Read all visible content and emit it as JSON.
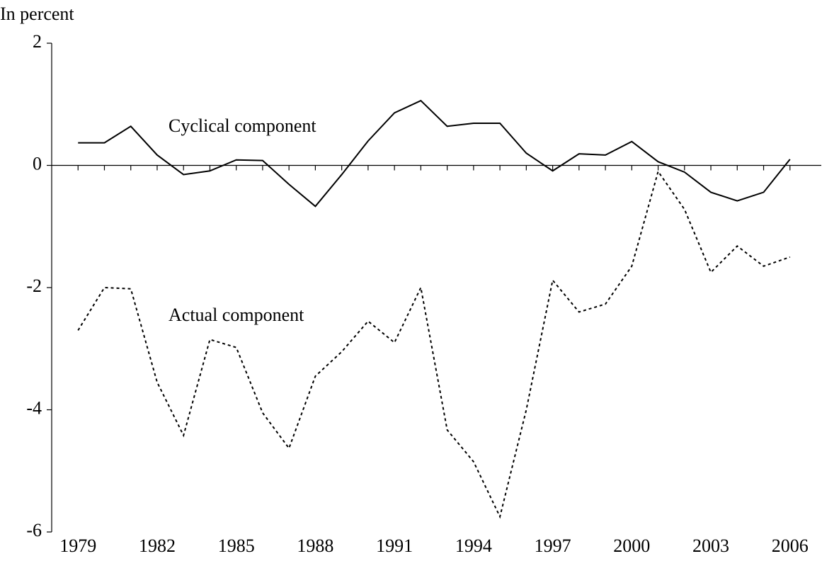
{
  "chart_data": {
    "type": "line",
    "y_label": "In percent",
    "x": [
      1979,
      1980,
      1981,
      1982,
      1983,
      1984,
      1985,
      1986,
      1987,
      1988,
      1989,
      1990,
      1991,
      1992,
      1993,
      1994,
      1995,
      1996,
      1997,
      1998,
      1999,
      2000,
      2001,
      2002,
      2003,
      2004,
      2005,
      2006
    ],
    "series": [
      {
        "name": "Cyclical component",
        "color": "#000000",
        "dash": "solid",
        "values": [
          0.37,
          0.37,
          0.64,
          0.17,
          -0.15,
          -0.09,
          0.09,
          0.08,
          -0.31,
          -0.67,
          -0.15,
          0.4,
          0.86,
          1.06,
          0.64,
          0.69,
          0.69,
          0.2,
          -0.09,
          0.19,
          0.17,
          0.39,
          0.06,
          -0.11,
          -0.44,
          -0.58,
          -0.44,
          0.1
        ]
      },
      {
        "name": "Actual component",
        "color": "#000000",
        "dash": "dotted",
        "values": [
          -2.7,
          -2.0,
          -2.02,
          -3.55,
          -4.42,
          -2.85,
          -2.98,
          -4.05,
          -4.63,
          -3.45,
          -3.05,
          -2.55,
          -2.9,
          -2.0,
          -4.33,
          -4.85,
          -5.75,
          -4.0,
          -1.88,
          -2.4,
          -2.27,
          -1.65,
          -0.1,
          -0.72,
          -1.75,
          -1.32,
          -1.65,
          -1.5
        ]
      }
    ],
    "xlim": [
      1978,
      2007
    ],
    "xticks": [
      1979,
      1982,
      1985,
      1988,
      1991,
      1994,
      1997,
      2000,
      2003,
      2006
    ],
    "ylim": [
      -6,
      2
    ],
    "yticks": [
      -6,
      -4,
      -2,
      0,
      2
    ]
  }
}
